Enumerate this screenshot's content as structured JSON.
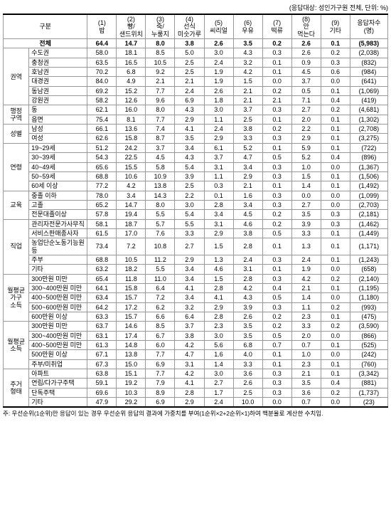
{
  "caption": "(응답대상: 성인가구원 전체, 단위: %)",
  "header": {
    "rowhead": "구분",
    "cols": [
      "(1)\n밥",
      "(2)\n빵/\n샌드위치",
      "(3)\n죽/\n누룽지",
      "(4)\n선식\n미숫가루",
      "(5)\n씨리얼",
      "(6)\n우유",
      "(7)\n떡류",
      "(8)\n안\n먹는다",
      "(9)\n기타",
      "응답자수\n(명)"
    ]
  },
  "total": {
    "label": "전체",
    "vals": [
      "64.4",
      "14.7",
      "8.0",
      "3.8",
      "2.6",
      "3.5",
      "0.2",
      "2.6",
      "0.1",
      "(5,983)"
    ]
  },
  "groups": [
    {
      "name": "권역",
      "rows": [
        {
          "label": "수도권",
          "vals": [
            "58.0",
            "18.1",
            "8.5",
            "5.0",
            "3.0",
            "4.3",
            "0.3",
            "2.6",
            "0.2",
            "(2,038)"
          ]
        },
        {
          "label": "충청권",
          "vals": [
            "63.5",
            "16.5",
            "10.5",
            "2.5",
            "2.4",
            "3.2",
            "0.1",
            "0.9",
            "0.3",
            "(832)"
          ]
        },
        {
          "label": "호남권",
          "vals": [
            "70.2",
            "6.8",
            "9.2",
            "2.5",
            "1.9",
            "4.2",
            "0.1",
            "4.5",
            "0.6",
            "(984)"
          ]
        },
        {
          "label": "대경권",
          "vals": [
            "84.0",
            "4.9",
            "2.1",
            "2.1",
            "1.9",
            "1.5",
            "0.0",
            "3.7",
            "0.0",
            "(641)"
          ]
        },
        {
          "label": "동남권",
          "vals": [
            "69.2",
            "15.2",
            "7.7",
            "2.4",
            "2.6",
            "2.1",
            "0.2",
            "0.5",
            "0.1",
            "(1,069)"
          ]
        },
        {
          "label": "강원권",
          "vals": [
            "58.2",
            "12.6",
            "9.6",
            "6.9",
            "1.8",
            "2.1",
            "2.1",
            "7.1",
            "0.4",
            "(419)"
          ]
        }
      ]
    },
    {
      "name": "행정\n구역",
      "rows": [
        {
          "label": "동",
          "vals": [
            "62.1",
            "16.0",
            "8.0",
            "4.3",
            "3.0",
            "3.7",
            "0.3",
            "2.7",
            "0.2",
            "(4,681)"
          ]
        },
        {
          "label": "읍면",
          "vals": [
            "75.4",
            "8.1",
            "7.7",
            "2.9",
            "1.1",
            "2.5",
            "0.1",
            "2.0",
            "0.1",
            "(1,302)"
          ]
        }
      ]
    },
    {
      "name": "성별",
      "rows": [
        {
          "label": "남성",
          "vals": [
            "66.1",
            "13.6",
            "7.4",
            "4.1",
            "2.4",
            "3.8",
            "0.2",
            "2.2",
            "0.1",
            "(2,708)"
          ]
        },
        {
          "label": "여성",
          "vals": [
            "62.6",
            "15.8",
            "8.7",
            "3.5",
            "2.9",
            "3.3",
            "0.3",
            "2.9",
            "0.1",
            "(3,275)"
          ]
        }
      ]
    },
    {
      "name": "연령",
      "rows": [
        {
          "label": "19~29세",
          "vals": [
            "51.2",
            "24.2",
            "3.7",
            "3.4",
            "6.1",
            "5.2",
            "0.1",
            "5.9",
            "0.1",
            "(722)"
          ]
        },
        {
          "label": "30~39세",
          "vals": [
            "54.3",
            "22.5",
            "4.5",
            "4.3",
            "3.7",
            "4.7",
            "0.5",
            "5.2",
            "0.4",
            "(896)"
          ]
        },
        {
          "label": "40~49세",
          "vals": [
            "65.6",
            "15.5",
            "5.8",
            "5.4",
            "3.1",
            "3.4",
            "0.3",
            "1.0",
            "0.0",
            "(1,367)"
          ]
        },
        {
          "label": "50~59세",
          "vals": [
            "68.8",
            "10.6",
            "10.9",
            "3.9",
            "1.1",
            "2.9",
            "0.3",
            "1.5",
            "0.1",
            "(1,506)"
          ]
        },
        {
          "label": "60세 이상",
          "vals": [
            "77.2",
            "4.2",
            "13.8",
            "2.5",
            "0.3",
            "2.1",
            "0.1",
            "1.4",
            "0.1",
            "(1,492)"
          ]
        }
      ]
    },
    {
      "name": "교육",
      "rows": [
        {
          "label": "중졸 이하",
          "vals": [
            "78.0",
            "3.4",
            "14.3",
            "2.2",
            "0.1",
            "1.6",
            "0.3",
            "0.0",
            "0.0",
            "(1,099)"
          ]
        },
        {
          "label": "고졸",
          "vals": [
            "65.2",
            "14.7",
            "8.0",
            "3.0",
            "2.8",
            "3.4",
            "0.3",
            "2.7",
            "0.0",
            "(2,703)"
          ]
        },
        {
          "label": "전문대졸이상",
          "vals": [
            "57.8",
            "19.4",
            "5.5",
            "5.4",
            "3.4",
            "4.5",
            "0.2",
            "3.5",
            "0.3",
            "(2,181)"
          ]
        }
      ]
    },
    {
      "name": "직업",
      "rows": [
        {
          "label": "관리자전문가사무직",
          "vals": [
            "58.1",
            "18.7",
            "5.7",
            "5.5",
            "3.1",
            "4.6",
            "0.2",
            "3.9",
            "0.3",
            "(1,462)"
          ]
        },
        {
          "label": "서비스판매종사자",
          "vals": [
            "61.5",
            "17.0",
            "7.6",
            "3.3",
            "2.9",
            "3.8",
            "0.5",
            "3.3",
            "0.1",
            "(1,449)"
          ]
        },
        {
          "label": "농업단순노동기능원등",
          "vals": [
            "73.4",
            "7.2",
            "10.8",
            "2.7",
            "1.5",
            "2.8",
            "0.1",
            "1.3",
            "0.1",
            "(1,171)"
          ]
        },
        {
          "label": "주부",
          "vals": [
            "68.8",
            "10.5",
            "11.2",
            "2.9",
            "1.3",
            "2.4",
            "0.3",
            "2.4",
            "0.1",
            "(1,243)"
          ]
        },
        {
          "label": "기타",
          "vals": [
            "63.2",
            "18.2",
            "5.5",
            "3.4",
            "4.6",
            "3.1",
            "0.1",
            "1.9",
            "0.0",
            "(658)"
          ]
        }
      ]
    },
    {
      "name": "월평균\n가구\n소득",
      "rows": [
        {
          "label": "300만원 미만",
          "vals": [
            "65.4",
            "11.8",
            "11.0",
            "3.4",
            "1.5",
            "2.8",
            "0.3",
            "4.2",
            "0.2",
            "(2,140)"
          ]
        },
        {
          "label": "300~400만원 미만",
          "vals": [
            "64.1",
            "15.8",
            "6.4",
            "4.1",
            "2.8",
            "4.2",
            "0.4",
            "2.1",
            "0.1",
            "(1,195)"
          ]
        },
        {
          "label": "400~500만원 미만",
          "vals": [
            "63.4",
            "15.7",
            "7.2",
            "3.4",
            "4.1",
            "4.3",
            "0.5",
            "1.4",
            "0.0",
            "(1,180)"
          ]
        },
        {
          "label": "500~600만원 미만",
          "vals": [
            "64.2",
            "17.2",
            "6.2",
            "3.2",
            "2.9",
            "3.9",
            "0.3",
            "1.1",
            "0.2",
            "(993)"
          ]
        },
        {
          "label": "600만원 이상",
          "vals": [
            "63.3",
            "15.7",
            "6.6",
            "6.4",
            "2.8",
            "2.6",
            "0.2",
            "2.3",
            "0.1",
            "(475)"
          ]
        }
      ]
    },
    {
      "name": "월평균\n소득",
      "rows": [
        {
          "label": "300만원 미만",
          "vals": [
            "63.7",
            "14.6",
            "8.5",
            "3.7",
            "2.3",
            "3.5",
            "0.2",
            "3.3",
            "0.2",
            "(3,590)"
          ]
        },
        {
          "label": "300~400만원 미만",
          "vals": [
            "63.1",
            "17.4",
            "6.7",
            "3.8",
            "3.0",
            "3.5",
            "0.5",
            "2.0",
            "0.0",
            "(866)"
          ]
        },
        {
          "label": "400~500만원 미만",
          "vals": [
            "61.3",
            "14.8",
            "6.0",
            "4.2",
            "5.6",
            "6.8",
            "0.7",
            "0.7",
            "0.1",
            "(525)"
          ]
        },
        {
          "label": "500만원 이상",
          "vals": [
            "67.1",
            "13.8",
            "7.7",
            "4.7",
            "1.6",
            "4.0",
            "0.1",
            "1.0",
            "0.0",
            "(242)"
          ]
        },
        {
          "label": "주부/미취업",
          "vals": [
            "67.3",
            "15.0",
            "6.9",
            "3.1",
            "1.4",
            "3.3",
            "0.1",
            "2.3",
            "0.1",
            "(760)"
          ]
        }
      ]
    },
    {
      "name": "주거\n형태",
      "rows": [
        {
          "label": "아파트",
          "vals": [
            "63.8",
            "15.1",
            "7.7",
            "4.2",
            "3.0",
            "3.6",
            "0.3",
            "2.1",
            "0.1",
            "(3,342)"
          ]
        },
        {
          "label": "연립/다가구주택",
          "vals": [
            "59.1",
            "19.2",
            "7.9",
            "4.1",
            "2.7",
            "2.6",
            "0.3",
            "3.5",
            "0.4",
            "(881)"
          ]
        },
        {
          "label": "단독주택",
          "vals": [
            "69.6",
            "10.3",
            "8.9",
            "2.8",
            "1.7",
            "2.5",
            "0.3",
            "3.6",
            "0.2",
            "(1,737)"
          ]
        },
        {
          "label": "기타",
          "vals": [
            "47.9",
            "29.2",
            "6.9",
            "2.9",
            "2.4",
            "10.0",
            "0.0",
            "0.7",
            "0.0",
            "(23)"
          ]
        }
      ]
    }
  ],
  "footnote": "주: 우선순위(1순위)만 응답이 있는 경우 우선순위 응답의 결과에 가중치를 부여(1순위×2+2순위×1)하여 백분율로 계산한 수치임."
}
